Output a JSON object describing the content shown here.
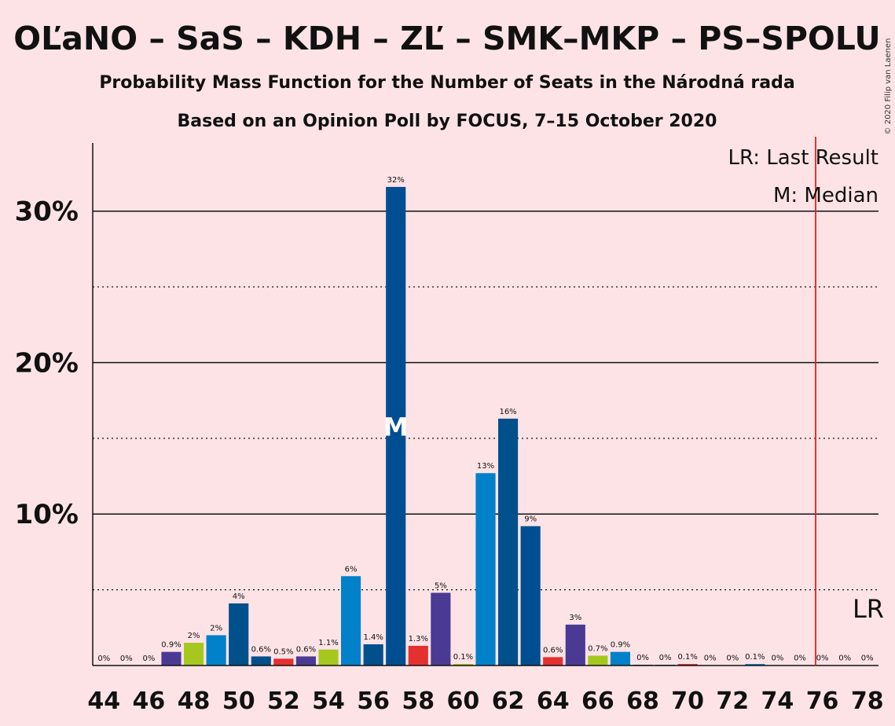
{
  "chart_data": {
    "type": "bar",
    "title": "OĽaNO – SaS – KDH – ZĽ – SMK–MKP – PS–SPOLU",
    "subtitle": "Probability Mass Function for the Number of Seats in the Národná rada",
    "subtitle2": "Based on an Opinion Poll by FOCUS, 7–15 October 2020",
    "copyright": "© 2020 Filip van Laenen",
    "ylim": [
      0,
      34.5
    ],
    "yticks": [
      10,
      20,
      30
    ],
    "ytick_labels": [
      "10%",
      "20%",
      "30%"
    ],
    "xlim": [
      43.5,
      78.5
    ],
    "xticks": [
      44,
      46,
      48,
      50,
      52,
      54,
      56,
      58,
      60,
      62,
      64,
      66,
      68,
      70,
      72,
      74,
      76,
      78
    ],
    "xtick_labels": [
      "44",
      "46",
      "48",
      "50",
      "52",
      "54",
      "56",
      "58",
      "60",
      "62",
      "64",
      "66",
      "68",
      "70",
      "72",
      "74",
      "76",
      "78"
    ],
    "seats": [
      44,
      45,
      46,
      47,
      48,
      49,
      50,
      51,
      52,
      53,
      54,
      55,
      56,
      57,
      58,
      59,
      60,
      61,
      62,
      63,
      64,
      65,
      66,
      67,
      68,
      69,
      70,
      71,
      72,
      73,
      74,
      75,
      76,
      77,
      78
    ],
    "values": [
      0,
      0,
      0,
      0.9,
      1.5,
      2.0,
      4.1,
      0.6,
      0.45,
      0.6,
      1.05,
      5.9,
      1.4,
      31.6,
      1.3,
      4.8,
      0.1,
      12.7,
      16.3,
      9.2,
      0.55,
      2.7,
      0.65,
      0.9,
      0.05,
      0.05,
      0.1,
      0.02,
      0.02,
      0.1,
      0.02,
      0.02,
      0.02,
      0.02,
      0.02
    ],
    "data_labels": [
      "0%",
      "0%",
      "0%",
      "0.9%",
      "2%",
      "2%",
      "4%",
      "0.6%",
      "0.5%",
      "0.6%",
      "1.1%",
      "6%",
      "1.4%",
      "32%",
      "1.3%",
      "5%",
      "0.1%",
      "13%",
      "16%",
      "9%",
      "0.6%",
      "3%",
      "0.7%",
      "0.9%",
      "0%",
      "0%",
      "0.1%",
      "0%",
      "0%",
      "0.1%",
      "0%",
      "0%",
      "0%",
      "0%",
      "0%"
    ],
    "colors": [
      "#4a3a94",
      "#4a3a94",
      "#4a3a94",
      "#4a3a94",
      "#a6c81e",
      "#0081c9",
      "#00508b",
      "#00508b",
      "#e53030",
      "#4a3a94",
      "#a6c81e",
      "#0081c9",
      "#00508b",
      "#004e92",
      "#e53030",
      "#4a3a94",
      "#a6c81e",
      "#0081c9",
      "#00508b",
      "#004e92",
      "#e53030",
      "#4a3a94",
      "#a6c81e",
      "#0081c9",
      "#00508b",
      "#004e92",
      "#e53030",
      "#4a3a94",
      "#a6c81e",
      "#0081c9",
      "#00508b",
      "#004e92",
      "#e53030",
      "#4a3a94",
      "#a6c81e"
    ],
    "median_seat": 57,
    "median_marker": "M",
    "last_result_seat": 75.7,
    "last_result_marker": "LR",
    "legend": [
      "LR: Last Result",
      "M: Median"
    ],
    "grid": "solid at 10% steps, dotted at 5% steps",
    "legend_placement": "top-right"
  }
}
